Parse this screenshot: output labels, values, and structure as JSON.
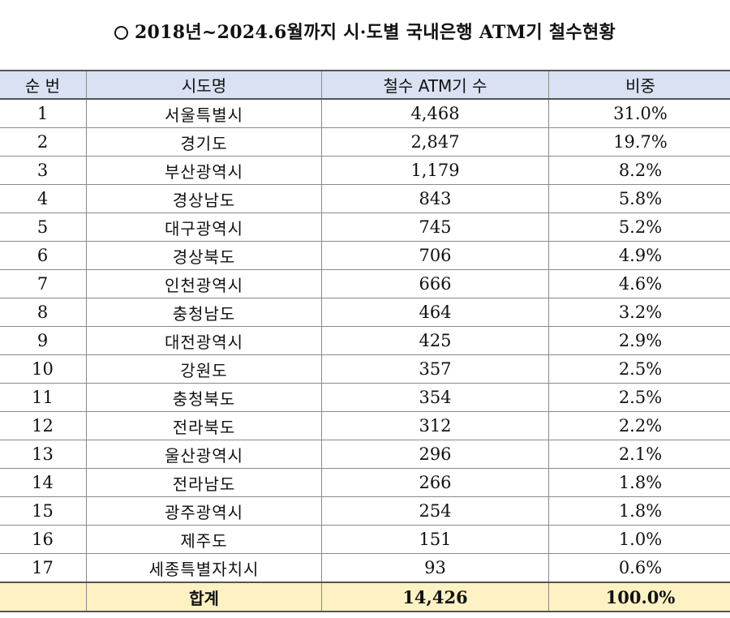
{
  "title": "2018년~2024.6월까지 시·도별 국내은행 ATM기 철수현황",
  "table": {
    "headers": [
      "순 번",
      "시도명",
      "철수 ATM기 수",
      "비중"
    ],
    "rows": [
      {
        "rank": "1",
        "region": "서울특별시",
        "count": "4,468",
        "share": "31.0%"
      },
      {
        "rank": "2",
        "region": "경기도",
        "count": "2,847",
        "share": "19.7%"
      },
      {
        "rank": "3",
        "region": "부산광역시",
        "count": "1,179",
        "share": "8.2%"
      },
      {
        "rank": "4",
        "region": "경상남도",
        "count": "843",
        "share": "5.8%"
      },
      {
        "rank": "5",
        "region": "대구광역시",
        "count": "745",
        "share": "5.2%"
      },
      {
        "rank": "6",
        "region": "경상북도",
        "count": "706",
        "share": "4.9%"
      },
      {
        "rank": "7",
        "region": "인천광역시",
        "count": "666",
        "share": "4.6%"
      },
      {
        "rank": "8",
        "region": "충청남도",
        "count": "464",
        "share": "3.2%"
      },
      {
        "rank": "9",
        "region": "대전광역시",
        "count": "425",
        "share": "2.9%"
      },
      {
        "rank": "10",
        "region": "강원도",
        "count": "357",
        "share": "2.5%"
      },
      {
        "rank": "11",
        "region": "충청북도",
        "count": "354",
        "share": "2.5%"
      },
      {
        "rank": "12",
        "region": "전라북도",
        "count": "312",
        "share": "2.2%"
      },
      {
        "rank": "13",
        "region": "울산광역시",
        "count": "296",
        "share": "2.1%"
      },
      {
        "rank": "14",
        "region": "전라남도",
        "count": "266",
        "share": "1.8%"
      },
      {
        "rank": "15",
        "region": "광주광역시",
        "count": "254",
        "share": "1.8%"
      },
      {
        "rank": "16",
        "region": "제주도",
        "count": "151",
        "share": "1.0%"
      },
      {
        "rank": "17",
        "region": "세종특별자치시",
        "count": "93",
        "share": "0.6%"
      }
    ],
    "total": {
      "label": "합계",
      "count": "14,426",
      "share": "100.0%"
    }
  },
  "colors": {
    "header_bg": "#d9e1f2",
    "total_bg": "#fef2c4",
    "border": "#8a8a8a"
  },
  "icons": {
    "title_bullet": "circle-bullet-icon"
  }
}
